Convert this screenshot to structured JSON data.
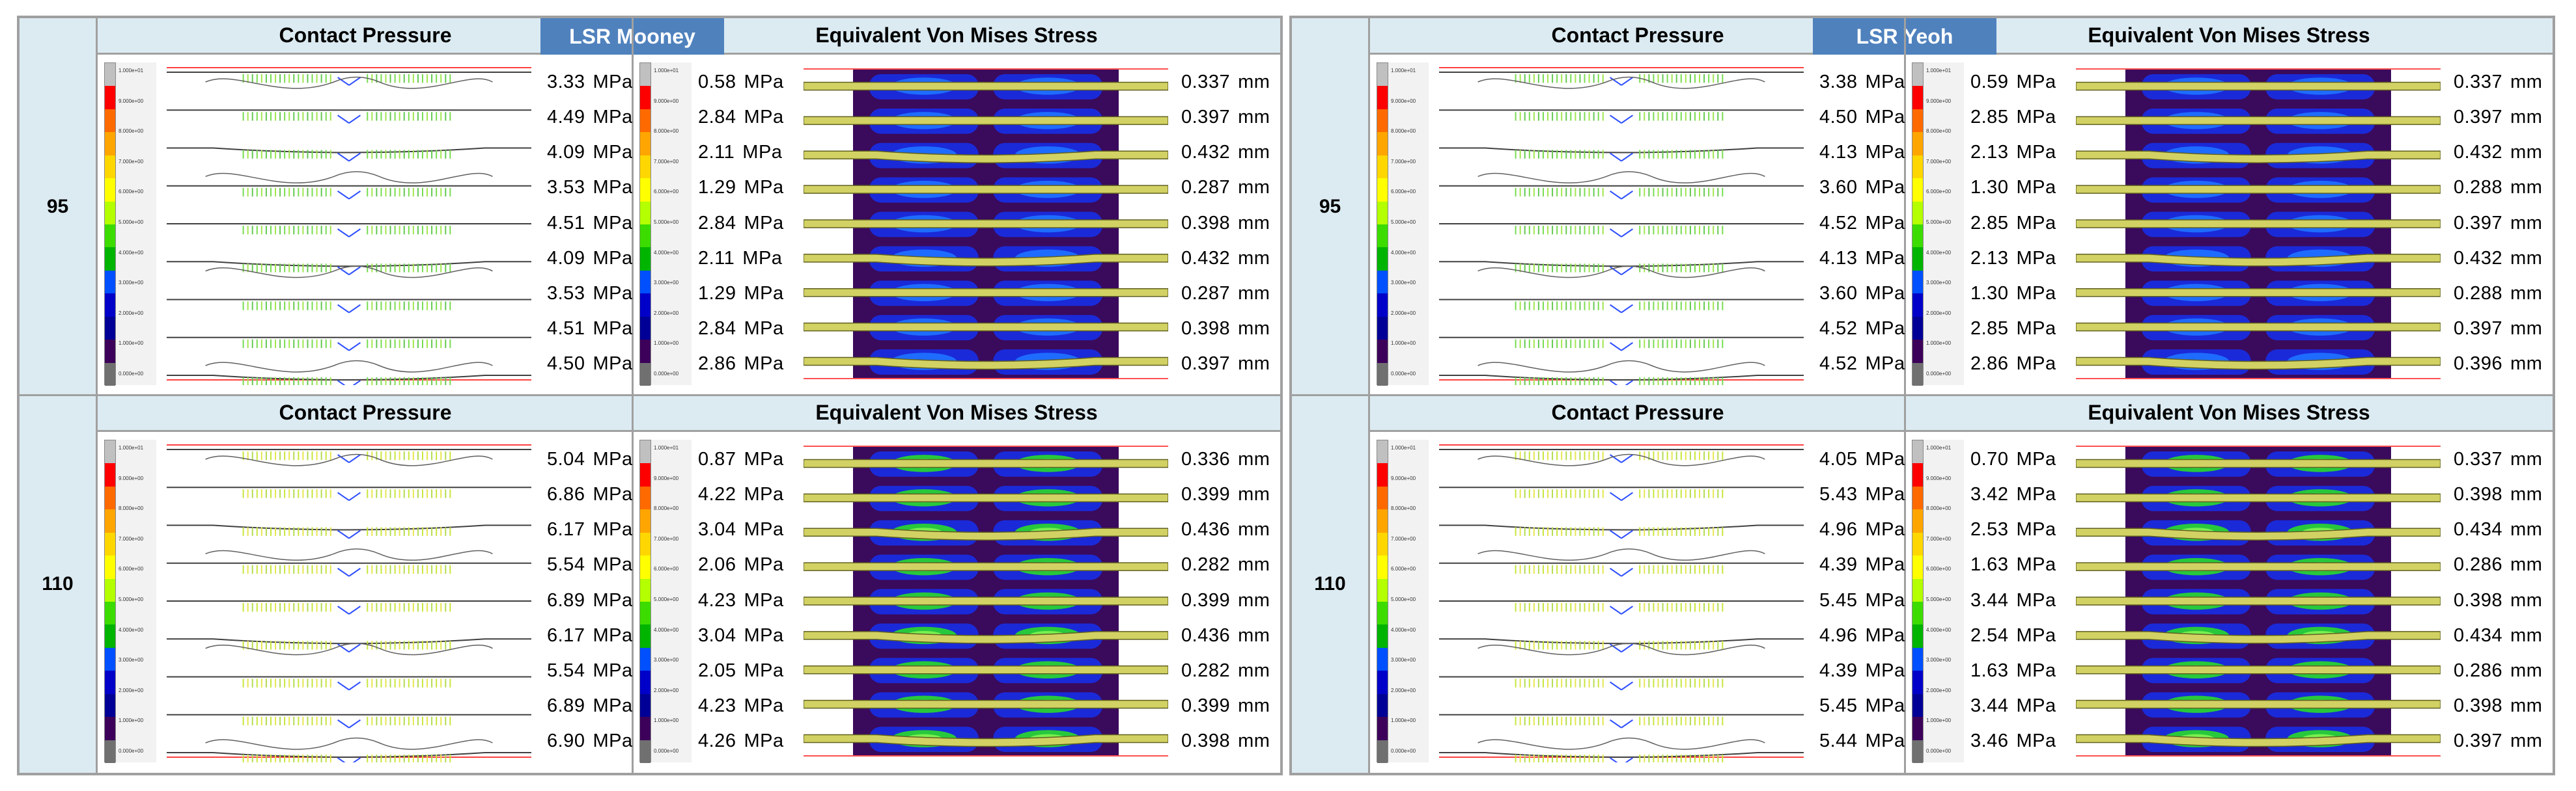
{
  "panels": [
    {
      "model": "LSR Mooney",
      "contact_header": "Contact Pressure",
      "stress_header": "Equivalent Von  Mises Stress",
      "rows": [
        {
          "label": "95",
          "contact": [
            "3.33",
            "4.49",
            "4.09",
            "3.53",
            "4.51",
            "4.09",
            "3.53",
            "4.51",
            "4.50"
          ],
          "stress": [
            "0.58",
            "2.84",
            "2.11",
            "1.29",
            "2.84",
            "2.11",
            "1.29",
            "2.84",
            "2.86"
          ],
          "disp": [
            "0.337",
            "0.397",
            "0.432",
            "0.287",
            "0.398",
            "0.432",
            "0.287",
            "0.398",
            "0.397"
          ]
        },
        {
          "label": "110",
          "contact": [
            "5.04",
            "6.86",
            "6.17",
            "5.54",
            "6.89",
            "6.17",
            "5.54",
            "6.89",
            "6.90"
          ],
          "stress": [
            "0.87",
            "4.22",
            "3.04",
            "2.06",
            "4.23",
            "3.04",
            "2.05",
            "4.23",
            "4.26"
          ],
          "disp": [
            "0.336",
            "0.399",
            "0.436",
            "0.282",
            "0.399",
            "0.436",
            "0.282",
            "0.399",
            "0.398"
          ]
        }
      ]
    },
    {
      "model": "LSR Yeoh",
      "contact_header": "Contact Pressure",
      "stress_header": "Equivalent Von  Mises Stress",
      "rows": [
        {
          "label": "95",
          "contact": [
            "3.38",
            "4.50",
            "4.13",
            "3.60",
            "4.52",
            "4.13",
            "3.60",
            "4.52",
            "4.52"
          ],
          "stress": [
            "0.59",
            "2.85",
            "2.13",
            "1.30",
            "2.85",
            "2.13",
            "1.30",
            "2.85",
            "2.86"
          ],
          "disp": [
            "0.337",
            "0.397",
            "0.432",
            "0.288",
            "0.397",
            "0.432",
            "0.288",
            "0.397",
            "0.396"
          ]
        },
        {
          "label": "110",
          "contact": [
            "4.05",
            "5.43",
            "4.96",
            "4.39",
            "5.45",
            "4.96",
            "4.39",
            "5.45",
            "5.44"
          ],
          "stress": [
            "0.70",
            "3.42",
            "2.53",
            "1.63",
            "3.44",
            "2.54",
            "1.63",
            "3.44",
            "3.46"
          ],
          "disp": [
            "0.337",
            "0.398",
            "0.434",
            "0.286",
            "0.398",
            "0.434",
            "0.286",
            "0.398",
            "0.397"
          ]
        }
      ]
    }
  ],
  "units": {
    "pressure": "MPa",
    "length": "mm"
  },
  "legend_colors": [
    "#c0c0c0",
    "#ff0000",
    "#ff6a00",
    "#ffa500",
    "#ffd700",
    "#ffff00",
    "#b4ff00",
    "#3cdc00",
    "#00b400",
    "#0050ff",
    "#0000c8",
    "#000096",
    "#3c005a",
    "#707070"
  ],
  "legend_ticks": [
    "1.000e+01",
    "9.000e+00",
    "8.000e+00",
    "7.000e+00",
    "6.000e+00",
    "5.000e+00",
    "4.000e+00",
    "3.000e+00",
    "2.000e+00",
    "1.000e+00",
    "0.000e+00"
  ]
}
